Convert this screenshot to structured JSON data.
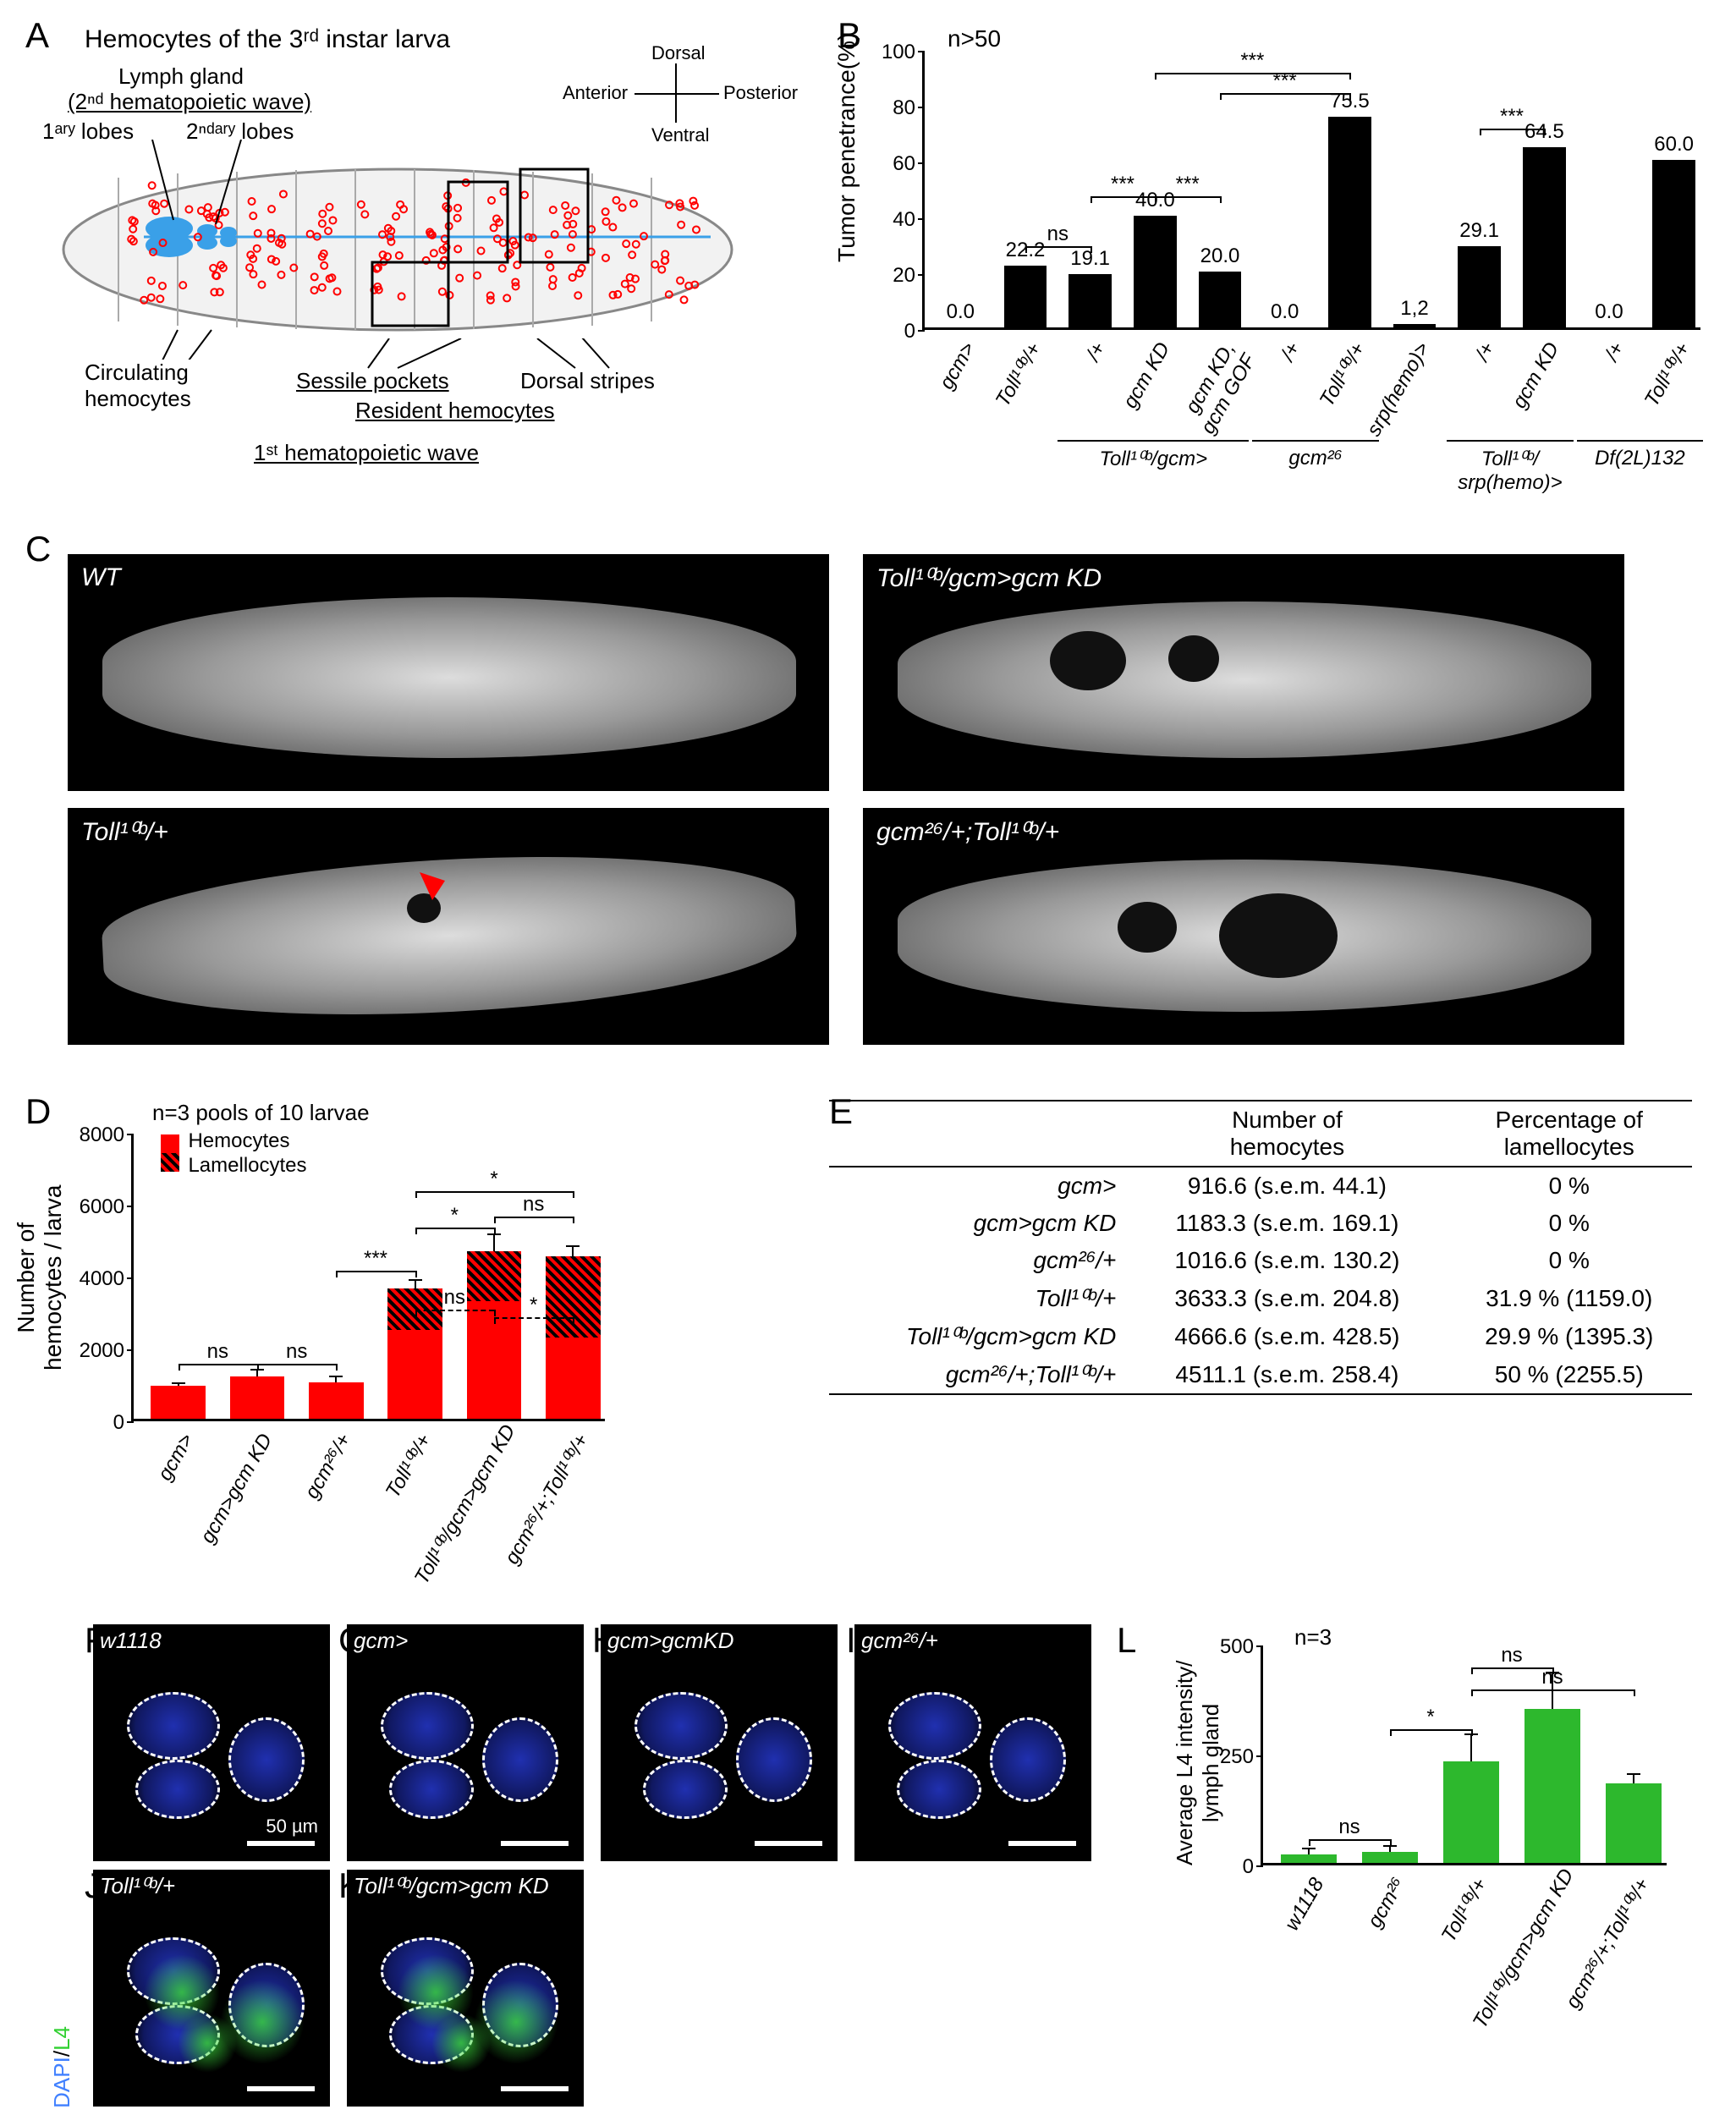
{
  "panelA": {
    "title": "Hemocytes of the 3ʳᵈ instar larva",
    "lymph_gland": "Lymph gland",
    "wave2": "(2ⁿᵈ hematopoietic wave)",
    "lobes1": "1ᵃʳʸ lobes",
    "lobes2": "2ⁿᵈᵃʳʸ lobes",
    "circulating": "Circulating\nhemocytes",
    "sessile": "Sessile pockets",
    "dorsal_stripes": "Dorsal stripes",
    "resident": "Resident hemocytes",
    "wave1": "1ˢᵗ hematopoietic wave",
    "axes": {
      "dorsal": "Dorsal",
      "ventral": "Ventral",
      "anterior": "Anterior",
      "posterior": "Posterior"
    }
  },
  "panelB": {
    "ylabel": "Tumor penetrance(%)",
    "n": "n>50",
    "ylim": [
      0,
      100
    ],
    "ytick_step": 20,
    "bar_color": "#000000",
    "bars": [
      {
        "label": "gcm>",
        "value": 0.0,
        "display": "0.0"
      },
      {
        "label": "Toll¹⁰ᵇ/+",
        "value": 22.2,
        "display": "22.2"
      },
      {
        "label": "/+",
        "value": 19.1,
        "display": "19.1"
      },
      {
        "label": "gcm KD",
        "value": 40.0,
        "display": "40.0"
      },
      {
        "label": "gcm KD,\ngcm GOF",
        "value": 20.0,
        "display": "20.0"
      },
      {
        "label": "/+",
        "value": 0.0,
        "display": "0.0"
      },
      {
        "label": "Toll¹⁰ᵇ/+",
        "value": 75.5,
        "display": "75.5"
      },
      {
        "label": "srp(hemo)>",
        "value": 1.2,
        "display": "1,2"
      },
      {
        "label": "/+",
        "value": 29.1,
        "display": "29.1"
      },
      {
        "label": "gcm KD",
        "value": 64.5,
        "display": "64.5"
      },
      {
        "label": "/+",
        "value": 0.0,
        "display": "0.0"
      },
      {
        "label": "Toll¹⁰ᵇ/+",
        "value": 60.0,
        "display": "60.0"
      }
    ],
    "groups": [
      {
        "label": "Toll¹⁰ᵇ/gcm>",
        "start": 2,
        "end": 4
      },
      {
        "label": "gcm²⁶",
        "start": 5,
        "end": 6
      },
      {
        "label": "Toll¹⁰ᵇ/\nsrp(hemo)>",
        "start": 8,
        "end": 9
      },
      {
        "label": "Df(2L)132",
        "start": 10,
        "end": 11
      }
    ],
    "sigs": [
      {
        "from": 1,
        "to": 2,
        "label": "ns",
        "y": 30
      },
      {
        "from": 2,
        "to": 3,
        "label": "***",
        "y": 48
      },
      {
        "from": 3,
        "to": 4,
        "label": "***",
        "y": 48
      },
      {
        "from": 3,
        "to": 6,
        "label": "***",
        "y": 92
      },
      {
        "from": 4,
        "to": 6,
        "label": "***",
        "y": 85
      },
      {
        "from": 8,
        "to": 9,
        "label": "***",
        "y": 72
      }
    ]
  },
  "panelC": {
    "images": [
      {
        "label": "WT",
        "tumors": false
      },
      {
        "label": "Toll¹⁰ᵇ/gcm>gcm KD",
        "tumors": true
      },
      {
        "label": "Toll¹⁰ᵇ/+",
        "tumors": true,
        "arrow": true
      },
      {
        "label": "gcm²⁶/+;Toll¹⁰ᵇ/+",
        "tumors": true
      }
    ]
  },
  "panelD": {
    "n": "n=3 pools of 10 larvae",
    "ylabel": "Number of\nhemocytes / larva",
    "legend": [
      {
        "label": "Hemocytes",
        "color": "#ff0000"
      },
      {
        "label": "Lamellocytes",
        "hatch": true,
        "base": "#ff0000"
      }
    ],
    "ylim": [
      0,
      8000
    ],
    "ytick_step": 2000,
    "bars": [
      {
        "label": "gcm>",
        "total": 916.6,
        "lam": 0,
        "sem": 44.1
      },
      {
        "label": "gcm>gcm KD",
        "total": 1183.3,
        "lam": 0,
        "sem": 169.1
      },
      {
        "label": "gcm²⁶/+",
        "total": 1016.6,
        "lam": 0,
        "sem": 130.2
      },
      {
        "label": "Toll¹⁰ᵇ/+",
        "total": 3633.3,
        "lam": 1159.0,
        "sem": 204.8
      },
      {
        "label": "Toll¹⁰ᵇ/gcm>gcm KD",
        "total": 4666.6,
        "lam": 1395.3,
        "sem": 428.5
      },
      {
        "label": "gcm²⁶/+;Toll¹⁰ᵇ/+",
        "total": 4511.1,
        "lam": 2255.5,
        "sem": 258.4
      }
    ],
    "sigs": [
      {
        "from": 0,
        "to": 1,
        "label": "ns",
        "y": 1600
      },
      {
        "from": 1,
        "to": 2,
        "label": "ns",
        "y": 1600
      },
      {
        "from": 2,
        "to": 3,
        "label": "***",
        "y": 4200
      },
      {
        "from": 3,
        "to": 4,
        "label": "*",
        "y": 5400
      },
      {
        "from": 4,
        "to": 5,
        "label": "ns",
        "y": 5700
      },
      {
        "from": 3,
        "to": 5,
        "label": "*",
        "y": 6400
      },
      {
        "from": 3,
        "to": 4,
        "label": "ns",
        "y": 3100,
        "dashed": true
      },
      {
        "from": 4,
        "to": 5,
        "label": "*",
        "y": 2900,
        "dashed": true
      }
    ]
  },
  "panelE": {
    "headers": [
      "",
      "Number of\nhemocytes",
      "Percentage of\nlamellocytes"
    ],
    "rows": [
      [
        "gcm>",
        "916.6 (s.e.m. 44.1)",
        "0 %"
      ],
      [
        "gcm>gcm KD",
        "1183.3 (s.e.m. 169.1)",
        "0 %"
      ],
      [
        "gcm²⁶/+",
        "1016.6 (s.e.m. 130.2)",
        "0 %"
      ],
      [
        "Toll¹⁰ᵇ/+",
        "3633.3 (s.e.m. 204.8)",
        "31.9 % (1159.0)"
      ],
      [
        "Toll¹⁰ᵇ/gcm>gcm KD",
        "4666.6 (s.e.m. 428.5)",
        "29.9 % (1395.3)"
      ],
      [
        "gcm²⁶/+;Toll¹⁰ᵇ/+",
        "4511.1 (s.e.m. 258.4)",
        "50 % (2255.5)"
      ]
    ]
  },
  "micrographs": [
    {
      "id": "F",
      "label": "w1118",
      "green": false
    },
    {
      "id": "G",
      "label": "gcm>",
      "green": false
    },
    {
      "id": "H",
      "label": "gcm>gcmKD",
      "green": false
    },
    {
      "id": "I",
      "label": "gcm²⁶/+",
      "green": false
    },
    {
      "id": "J",
      "label": "Toll¹⁰ᵇ/+",
      "green": true
    },
    {
      "id": "K",
      "label": "Toll¹⁰ᵇ/gcm>gcm KD",
      "green": true
    }
  ],
  "scalebar_label": "50 µm",
  "dapi_label": "DAPI",
  "l4_label": "L4",
  "panelL": {
    "n": "n=3",
    "ylabel": "Average L4 intensity/\nlymph gland",
    "ylim": [
      0,
      500
    ],
    "ytick_step": 250,
    "color": "#2db82d",
    "bars": [
      {
        "label": "w1118",
        "value": 20,
        "sem": 10
      },
      {
        "label": "gcm²⁶",
        "value": 25,
        "sem": 12
      },
      {
        "label": "Toll¹⁰ᵇ/+",
        "value": 230,
        "sem": 60
      },
      {
        "label": "Toll¹⁰ᵇ/gcm>gcm KD",
        "value": 350,
        "sem": 80
      },
      {
        "label": "gcm²⁶/+;Toll¹⁰ᵇ/+",
        "value": 180,
        "sem": 20
      }
    ],
    "sigs": [
      {
        "from": 0,
        "to": 1,
        "label": "ns",
        "y": 60
      },
      {
        "from": 1,
        "to": 2,
        "label": "*",
        "y": 310
      },
      {
        "from": 2,
        "to": 3,
        "label": "ns",
        "y": 450
      },
      {
        "from": 2,
        "to": 4,
        "label": "ns",
        "y": 400
      }
    ]
  }
}
